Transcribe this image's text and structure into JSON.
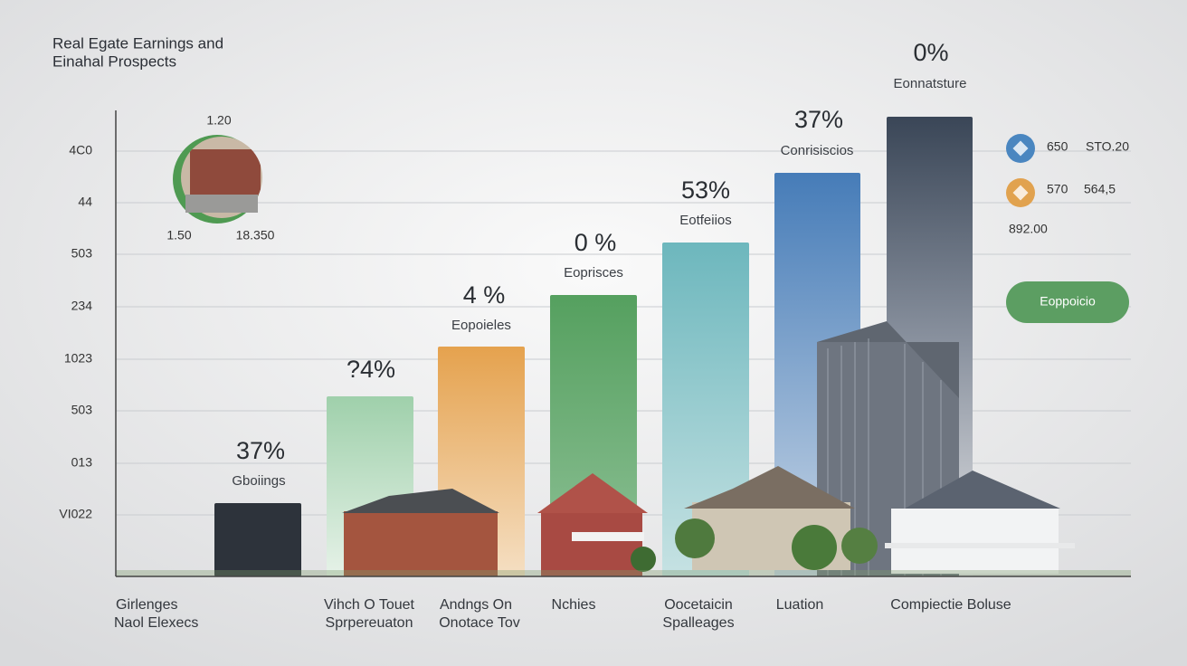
{
  "title": [
    "Real Egate Earnings and",
    "Einahal Prospects"
  ],
  "y_axis": [
    "4C0",
    "44",
    "503",
    "234",
    "1023",
    "503",
    "013",
    "VI022"
  ],
  "bars": [
    {
      "value_label": "37%",
      "label": "Gboiings"
    },
    {
      "value_label": "?4%",
      "label": null
    },
    {
      "value_label": "4 %",
      "label": "Eopoieles"
    },
    {
      "value_label": "0 %",
      "label": "Eoprisces"
    },
    {
      "value_label": "53%",
      "label": "Eotfeiios"
    },
    {
      "value_label": "37%",
      "label": "Conrisiscios"
    },
    {
      "value_label": "0%",
      "label": "Eonnatsture"
    }
  ],
  "inset": {
    "top": "1.20",
    "left": "1.50",
    "right": "18.350"
  },
  "legend": [
    {
      "a": "650",
      "b": "STO.20"
    },
    {
      "a": "570",
      "b": "564,5"
    }
  ],
  "legend_total": "892.00",
  "button": "Eoppoicio",
  "categories": [
    [
      "Girlenges",
      "Naol Elexecs"
    ],
    [
      "Vihch O Touet",
      "Sprpereuaton"
    ],
    [
      "Andngs On",
      "Onotace Tov"
    ],
    [
      "Nchies"
    ],
    [
      "Oocetaicin",
      "Spalleages"
    ],
    [
      "Luation"
    ],
    [
      "Compiectie Boluse"
    ]
  ]
}
